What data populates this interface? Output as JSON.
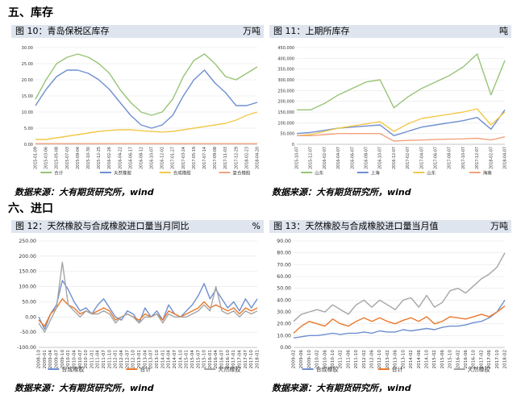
{
  "sections": {
    "inventory": "五、库存",
    "imports": "六、进口"
  },
  "source_text": "数据来源：大有期货研究所，wind",
  "colors": {
    "green": "#97c476",
    "blue": "#6f8fd0",
    "yellow": "#f2c94c",
    "peach": "#f2a37e",
    "orange": "#e9782c",
    "gray": "#a5a5a5",
    "header": "#dfe5ef"
  },
  "chart_data": [
    {
      "type": "line",
      "title": "图 10：青岛保税区库存",
      "unit": "万吨",
      "x": [
        "2015-01-09",
        "2015-03-06",
        "2015-05-08",
        "2015-07-03",
        "2015-09-04",
        "2015-10-30",
        "2015-12-25",
        "2016-02-26",
        "2016-04-22",
        "2016-06-17",
        "2016-08-12",
        "2016-10-07",
        "2016-12-02",
        "2017-01-27",
        "2017-03-24",
        "2017-05-19",
        "2017-07-14",
        "2017-09-08",
        "2017-11-03",
        "2017-12-29",
        "2018-02-23",
        "2018-04-20"
      ],
      "yticks": [
        "0.00",
        "5.00",
        "10.00",
        "15.00",
        "20.00",
        "25.00",
        "30.00"
      ],
      "ylim": [
        0,
        30
      ],
      "series": [
        {
          "name": "合计",
          "color": "#97c476",
          "values": [
            14,
            20,
            25,
            27,
            28,
            27,
            25,
            22,
            17,
            13,
            10,
            9,
            10,
            14,
            21,
            26,
            28,
            25,
            21,
            20,
            22,
            24
          ]
        },
        {
          "name": "天然橡胶",
          "color": "#6f8fd0",
          "values": [
            12,
            17,
            21,
            23,
            23,
            22,
            20,
            17,
            13,
            9,
            6,
            5,
            6,
            9,
            15,
            20,
            23,
            19,
            16,
            12,
            12,
            13
          ]
        },
        {
          "name": "合成橡胶",
          "color": "#f2c94c",
          "values": [
            1.5,
            1.5,
            2,
            2.5,
            3,
            3.5,
            4,
            4.3,
            4.5,
            4.5,
            4.2,
            4,
            3.8,
            4,
            4.5,
            5,
            5.5,
            6,
            6.5,
            7.5,
            9,
            10
          ]
        },
        {
          "name": "复合橡胶",
          "color": "#f2a37e",
          "values": [
            0.2,
            0.2,
            0.2,
            0.2,
            0.2,
            0.2,
            0.2,
            0.2,
            0.2,
            0.2,
            0.2,
            0.2,
            0.2,
            0.2,
            0.2,
            0.2,
            0.2,
            0.2,
            0.2,
            0.2,
            0.2,
            0.2
          ]
        }
      ]
    },
    {
      "type": "line",
      "title": "图 11：上期所库存",
      "unit": "吨",
      "x": [
        "2015-10-07",
        "2015-12-07",
        "2016-02-07",
        "2016-04-07",
        "2016-06-07",
        "2016-08-07",
        "2016-10-07",
        "2016-12-07",
        "2017-02-07",
        "2017-04-07",
        "2017-06-07",
        "2017-08-07",
        "2017-10-07",
        "2017-12-07",
        "2018-02-07",
        "2018-04-07"
      ],
      "yticks": [
        "0",
        "50,000",
        "100,000",
        "150,000",
        "200,000",
        "250,000",
        "300,000",
        "350,000",
        "400,000",
        "450,000"
      ],
      "ylim": [
        0,
        450000
      ],
      "series": [
        {
          "name": "山东",
          "color": "#97c476",
          "values": [
            160000,
            160000,
            190000,
            230000,
            260000,
            290000,
            300000,
            170000,
            220000,
            260000,
            290000,
            320000,
            360000,
            420000,
            230000,
            390000
          ]
        },
        {
          "name": "上海",
          "color": "#6f8fd0",
          "values": [
            50000,
            55000,
            65000,
            75000,
            80000,
            85000,
            90000,
            40000,
            60000,
            80000,
            90000,
            100000,
            110000,
            125000,
            70000,
            160000
          ]
        },
        {
          "name": "山东",
          "color": "#f2c94c",
          "values": [
            40000,
            45000,
            60000,
            75000,
            85000,
            95000,
            105000,
            60000,
            95000,
            120000,
            130000,
            140000,
            150000,
            165000,
            90000,
            150000
          ]
        },
        {
          "name": "海南",
          "color": "#f2a37e",
          "values": [
            40000,
            40000,
            45000,
            50000,
            50000,
            50000,
            50000,
            15000,
            18000,
            20000,
            22000,
            24000,
            25000,
            28000,
            20000,
            35000
          ]
        }
      ]
    },
    {
      "type": "line",
      "title": "图 12：天然橡胶与合成橡胶进口量当月同比",
      "unit": "%",
      "x": [
        "2008-10",
        "2009-01",
        "2009-04",
        "2009-07",
        "2009-10",
        "2010-01",
        "2010-04",
        "2010-07",
        "2010-10",
        "2011-01",
        "2011-04",
        "2011-07",
        "2011-10",
        "2012-01",
        "2012-04",
        "2012-07",
        "2012-10",
        "2013-01",
        "2013-04",
        "2013-07",
        "2013-10",
        "2014-01",
        "2014-04",
        "2014-07",
        "2014-10",
        "2015-01",
        "2015-04",
        "2015-07",
        "2015-10",
        "2016-01",
        "2016-04",
        "2016-07",
        "2016-10",
        "2017-01",
        "2017-04",
        "2017-07",
        "2017-10",
        "2018-01"
      ],
      "yticks": [
        "-100.00",
        "-50.00",
        "0.00",
        "50.00",
        "100.00",
        "150.00",
        "200.00",
        "250.00"
      ],
      "ylim": [
        -100,
        250
      ],
      "series": [
        {
          "name": "合成橡胶",
          "color": "#6f8fd0",
          "values": [
            0,
            -40,
            10,
            40,
            120,
            90,
            50,
            20,
            30,
            10,
            40,
            60,
            30,
            0,
            -10,
            20,
            10,
            -20,
            30,
            0,
            20,
            -10,
            40,
            10,
            0,
            20,
            40,
            70,
            110,
            60,
            90,
            60,
            30,
            50,
            20,
            60,
            30,
            60
          ]
        },
        {
          "name": "合计",
          "color": "#e9782c",
          "values": [
            -10,
            -30,
            10,
            30,
            60,
            40,
            30,
            10,
            20,
            10,
            20,
            30,
            20,
            -10,
            0,
            10,
            0,
            -10,
            10,
            0,
            10,
            -10,
            20,
            10,
            0,
            10,
            20,
            30,
            50,
            30,
            40,
            30,
            20,
            30,
            10,
            30,
            20,
            30
          ]
        },
        {
          "name": "天然橡胶",
          "color": "#a5a5a5",
          "values": [
            -20,
            -50,
            -10,
            30,
            180,
            40,
            20,
            0,
            20,
            10,
            10,
            20,
            10,
            -20,
            0,
            10,
            0,
            -20,
            0,
            0,
            10,
            -20,
            10,
            0,
            0,
            0,
            10,
            20,
            40,
            20,
            100,
            20,
            10,
            20,
            0,
            20,
            10,
            20
          ]
        }
      ]
    },
    {
      "type": "line",
      "title": "图 13：天然橡胶与合成橡胶进口量当月值",
      "unit": "万吨",
      "x": [
        "2009-02",
        "2009-06",
        "2009-10",
        "2010-02",
        "2010-06",
        "2010-10",
        "2011-02",
        "2011-06",
        "2011-10",
        "2012-02",
        "2012-06",
        "2012-10",
        "2013-02",
        "2013-06",
        "2013-10",
        "2014-02",
        "2014-06",
        "2014-10",
        "2015-02",
        "2015-06",
        "2015-10",
        "2016-02",
        "2016-06",
        "2016-10",
        "2017-02",
        "2017-06",
        "2017-10",
        "2018-02"
      ],
      "yticks": [
        "0.00",
        "10.00",
        "20.00",
        "30.00",
        "40.00",
        "50.00",
        "60.00",
        "70.00",
        "80.00",
        "90.00"
      ],
      "ylim": [
        0,
        90
      ],
      "series": [
        {
          "name": "合成橡胶",
          "color": "#6f8fd0",
          "values": [
            8,
            9,
            10,
            10,
            11,
            12,
            11,
            12,
            12,
            13,
            12,
            14,
            13,
            13,
            15,
            14,
            15,
            16,
            15,
            17,
            18,
            18,
            19,
            21,
            22,
            25,
            30,
            40
          ]
        },
        {
          "name": "合计",
          "color": "#e9782c",
          "values": [
            12,
            18,
            22,
            20,
            18,
            24,
            20,
            18,
            22,
            25,
            22,
            25,
            22,
            20,
            23,
            25,
            22,
            26,
            20,
            22,
            26,
            25,
            24,
            26,
            28,
            26,
            30,
            35
          ]
        },
        {
          "name": "天然橡胶",
          "color": "#a5a5a5",
          "values": [
            22,
            28,
            30,
            32,
            30,
            36,
            32,
            28,
            36,
            40,
            34,
            40,
            36,
            32,
            40,
            42,
            34,
            44,
            34,
            38,
            48,
            50,
            46,
            52,
            58,
            62,
            68,
            80
          ]
        }
      ]
    }
  ]
}
